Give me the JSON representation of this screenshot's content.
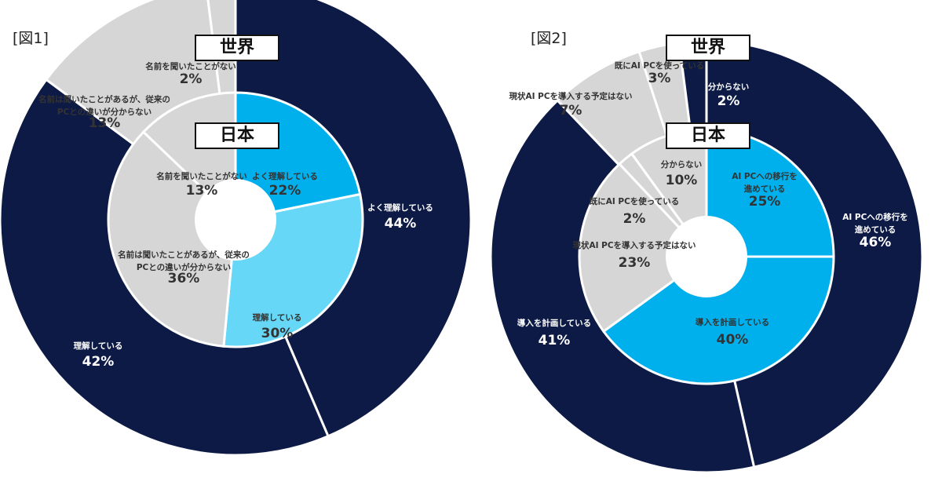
{
  "figures": [
    {
      "label": "[図1]"
    },
    {
      "label": "[図2]"
    }
  ],
  "ring_labels": {
    "outer": "世界",
    "inner": "日本"
  },
  "colors": {
    "navy": "#0d1a45",
    "blue": "#00b0ec",
    "light_blue": "#66d7f6",
    "gray": "#d6d6d6",
    "dark_text": "#333333",
    "white_text": "#ffffff"
  },
  "chart_data": [
    {
      "type": "pie",
      "title": "[図1]",
      "rings": [
        {
          "name": "世界",
          "slices": [
            {
              "label": "よく理解している",
              "value": 44,
              "display": "44%",
              "color": "navy"
            },
            {
              "label": "理解している",
              "value": 42,
              "display": "42%",
              "color": "navy"
            },
            {
              "label": "名前は聞いたことがあるが、従来のPCとの違いが分からない",
              "label_lines": [
                "名前は聞いたことがあるが、従来の",
                "PCとの違いが分からない"
              ],
              "value": 13,
              "display": "13%",
              "color": "gray"
            },
            {
              "label": "名前を聞いたことがない",
              "value": 2,
              "display": "2%",
              "color": "gray"
            }
          ]
        },
        {
          "name": "日本",
          "slices": [
            {
              "label": "よく理解している",
              "value": 22,
              "display": "22%",
              "color": "blue"
            },
            {
              "label": "理解している",
              "value": 30,
              "display": "30%",
              "color": "light_blue"
            },
            {
              "label": "名前は聞いたことがあるが、従来のPCとの違いが分からない",
              "label_lines": [
                "名前は聞いたことがあるが、従来の",
                "PCとの違いが分からない"
              ],
              "value": 36,
              "display": "36%",
              "color": "gray"
            },
            {
              "label": "名前を聞いたことがない",
              "value": 13,
              "display": "13%",
              "color": "gray"
            }
          ]
        }
      ]
    },
    {
      "type": "pie",
      "title": "[図2]",
      "rings": [
        {
          "name": "世界",
          "slices": [
            {
              "label": "AI PCへの移行を進めている",
              "label_lines": [
                "AI PCへの移行を",
                "進めている"
              ],
              "value": 46,
              "display": "46%",
              "color": "navy"
            },
            {
              "label": "導入を計画している",
              "value": 41,
              "display": "41%",
              "color": "navy"
            },
            {
              "label": "現状AI PCを導入する予定はない",
              "value": 7,
              "display": "7%",
              "color": "gray"
            },
            {
              "label": "既にAI PCを使っている",
              "value": 3,
              "display": "3%",
              "color": "gray"
            },
            {
              "label": "分からない",
              "value": 2,
              "display": "2%",
              "color": "navy"
            }
          ]
        },
        {
          "name": "日本",
          "slices": [
            {
              "label": "AI PCへの移行を進めている",
              "label_lines": [
                "AI PCへの移行を",
                "進めている"
              ],
              "value": 25,
              "display": "25%",
              "color": "blue"
            },
            {
              "label": "導入を計画している",
              "value": 40,
              "display": "40%",
              "color": "blue"
            },
            {
              "label": "現状AI PCを導入する予定はない",
              "value": 23,
              "display": "23%",
              "color": "gray"
            },
            {
              "label": "既にAI PCを使っている",
              "value": 2,
              "display": "2%",
              "color": "gray"
            },
            {
              "label": "分からない",
              "value": 10,
              "display": "10%",
              "color": "gray"
            }
          ]
        }
      ]
    }
  ]
}
